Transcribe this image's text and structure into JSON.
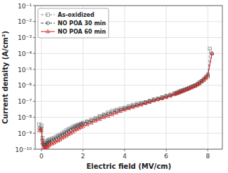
{
  "chart_data": {
    "type": "line",
    "xlabel": "Electric field (MV/cm)",
    "ylabel": "Current density (A/cm²)",
    "xlim": [
      -0.3,
      8.7
    ],
    "ylim": [
      1e-10,
      0.1
    ],
    "xticks": [
      0,
      2,
      4,
      6,
      8
    ],
    "yticks": [
      {
        "value": 1e-10,
        "label": "10⁻¹⁰"
      },
      {
        "value": 1e-09,
        "label": "10⁻⁹"
      },
      {
        "value": 1e-08,
        "label": "10⁻⁸"
      },
      {
        "value": 1e-07,
        "label": "10⁻⁷"
      },
      {
        "value": 1e-06,
        "label": "10⁻⁶"
      },
      {
        "value": 1e-05,
        "label": "10⁻⁵"
      },
      {
        "value": 0.0001,
        "label": "10⁻⁴"
      },
      {
        "value": 0.001,
        "label": "10⁻³"
      },
      {
        "value": 0.01,
        "label": "10⁻²"
      },
      {
        "value": 0.1,
        "label": "10⁻¹"
      }
    ],
    "log": "y",
    "grid": true,
    "legend": "upper left",
    "series": [
      {
        "name": "As-oxidized",
        "color": "#888888",
        "marker": "square",
        "line_style": "dashed",
        "x": [
          -0.1,
          0.0,
          0.05,
          0.1,
          0.15,
          0.2,
          0.25,
          0.3,
          0.35,
          0.4,
          0.5,
          0.6,
          0.7,
          0.8,
          0.9,
          1.0,
          1.1,
          1.2,
          1.3,
          1.4,
          1.5,
          1.6,
          1.7,
          1.8,
          1.9,
          2.0,
          2.2,
          2.4,
          2.6,
          2.8,
          3.0,
          3.2,
          3.4,
          3.6,
          3.8,
          4.0,
          4.2,
          4.4,
          4.6,
          4.8,
          5.0,
          5.2,
          5.4,
          5.6,
          5.8,
          6.0,
          6.2,
          6.4,
          6.5,
          6.6,
          6.7,
          6.8,
          6.9,
          7.0,
          7.1,
          7.2,
          7.3,
          7.4,
          7.5,
          7.6,
          7.7,
          7.8,
          7.9,
          8.0,
          8.1
        ],
        "values": [
          3.5e-09,
          3e-09,
          5e-10,
          2e-10,
          2.2e-10,
          2.5e-10,
          3e-10,
          3.5e-10,
          3.8e-10,
          4e-10,
          4.5e-10,
          5e-10,
          6e-10,
          7e-10,
          8e-10,
          1e-09,
          1.2e-09,
          1.5e-09,
          1.8e-09,
          2e-09,
          2.5e-09,
          2.8e-09,
          3.2e-09,
          3.5e-09,
          4e-09,
          4.5e-09,
          5.5e-09,
          7e-09,
          9e-09,
          1.2e-08,
          1.5e-08,
          2e-08,
          2.5e-08,
          3e-08,
          3.5e-08,
          4e-08,
          5e-08,
          6e-08,
          7e-08,
          8e-08,
          9e-08,
          1.1e-07,
          1.3e-07,
          1.5e-07,
          1.8e-07,
          2.2e-07,
          2.6e-07,
          3.2e-07,
          3.5e-07,
          4e-07,
          4.5e-07,
          5e-07,
          5.5e-07,
          6e-07,
          7e-07,
          8e-07,
          9e-07,
          1e-06,
          1.2e-06,
          1.5e-06,
          1.8e-06,
          2.2e-06,
          2.8e-06,
          3.5e-06,
          0.0002
        ]
      },
      {
        "name": "NO POA 30 min",
        "color": "#444444",
        "marker": "circle",
        "line_style": "dashed",
        "x": [
          -0.1,
          0.0,
          0.05,
          0.1,
          0.15,
          0.2,
          0.25,
          0.3,
          0.35,
          0.4,
          0.5,
          0.6,
          0.7,
          0.8,
          0.9,
          1.0,
          1.1,
          1.2,
          1.3,
          1.4,
          1.5,
          1.6,
          1.7,
          1.8,
          1.9,
          2.0,
          2.2,
          2.4,
          2.6,
          2.8,
          3.0,
          3.2,
          3.4,
          3.6,
          3.8,
          4.0,
          4.2,
          4.4,
          4.6,
          4.8,
          5.0,
          5.2,
          5.4,
          5.6,
          5.8,
          6.0,
          6.2,
          6.4,
          6.5,
          6.6,
          6.7,
          6.8,
          6.9,
          7.0,
          7.1,
          7.2,
          7.3,
          7.4,
          7.5,
          7.6,
          7.7,
          7.8,
          7.9,
          8.0,
          8.2
        ],
        "values": [
          2e-09,
          2e-09,
          3.5e-10,
          1.8e-10,
          1.8e-10,
          2e-10,
          2.2e-10,
          2.5e-10,
          2.8e-10,
          3e-10,
          3.5e-10,
          4e-10,
          4.5e-10,
          5.5e-10,
          6.5e-10,
          8e-10,
          9e-10,
          1.1e-09,
          1.3e-09,
          1.6e-09,
          2e-09,
          2.3e-09,
          2.7e-09,
          3e-09,
          3.5e-09,
          4e-09,
          5e-09,
          6e-09,
          7.5e-09,
          1e-08,
          1.3e-08,
          1.6e-08,
          2e-08,
          2.5e-08,
          3e-08,
          3.5e-08,
          4.2e-08,
          5e-08,
          6e-08,
          7e-08,
          8.5e-08,
          1e-07,
          1.2e-07,
          1.4e-07,
          1.7e-07,
          2e-07,
          2.4e-07,
          3e-07,
          3.3e-07,
          3.7e-07,
          4.2e-07,
          4.7e-07,
          5.3e-07,
          6e-07,
          6.8e-07,
          7.7e-07,
          8.8e-07,
          1e-06,
          1.2e-06,
          1.5e-06,
          1.9e-06,
          2.5e-06,
          3.5e-06,
          5e-06,
          0.0001
        ]
      },
      {
        "name": "NO POA 60 min",
        "color": "#cc2222",
        "marker": "triangle",
        "line_style": "solid",
        "x": [
          -0.1,
          0.0,
          0.05,
          0.1,
          0.15,
          0.2,
          0.25,
          0.3,
          0.35,
          0.4,
          0.5,
          0.6,
          0.7,
          0.8,
          0.9,
          1.0,
          1.1,
          1.2,
          1.3,
          1.4,
          1.5,
          1.6,
          1.7,
          1.8,
          1.9,
          2.0,
          2.2,
          2.4,
          2.6,
          2.8,
          3.0,
          3.2,
          3.4,
          3.6,
          3.8,
          4.0,
          4.2,
          4.4,
          4.6,
          4.8,
          5.0,
          5.2,
          5.4,
          5.6,
          5.8,
          6.0,
          6.2,
          6.4,
          6.5,
          6.6,
          6.7,
          6.8,
          6.9,
          7.0,
          7.1,
          7.2,
          7.3,
          7.4,
          7.5,
          7.6,
          7.7,
          7.8,
          7.9,
          8.0,
          8.2
        ],
        "values": [
          1.5e-09,
          1.5e-09,
          2.5e-10,
          1.3e-10,
          1.2e-10,
          1.2e-10,
          1.3e-10,
          1.5e-10,
          1.7e-10,
          2e-10,
          2.2e-10,
          2.5e-10,
          3e-10,
          3.5e-10,
          4e-10,
          5e-10,
          6e-10,
          7e-10,
          8.5e-10,
          1e-09,
          1.2e-09,
          1.5e-09,
          1.8e-09,
          2e-09,
          2.4e-09,
          2.8e-09,
          3.5e-09,
          4.5e-09,
          6e-09,
          7.5e-09,
          1e-08,
          1.2e-08,
          1.5e-08,
          1.9e-08,
          2.4e-08,
          3e-08,
          3.6e-08,
          4.3e-08,
          5.2e-08,
          6.2e-08,
          7.5e-08,
          9e-08,
          1.1e-07,
          1.3e-07,
          1.5e-07,
          1.8e-07,
          2.2e-07,
          2.7e-07,
          3e-07,
          3.4e-07,
          3.8e-07,
          4.3e-07,
          4.9e-07,
          5.5e-07,
          6.3e-07,
          7.2e-07,
          8.2e-07,
          9.3e-07,
          1.1e-06,
          1.3e-06,
          1.7e-06,
          2.2e-06,
          3e-06,
          4.2e-06,
          0.0001
        ]
      }
    ]
  }
}
